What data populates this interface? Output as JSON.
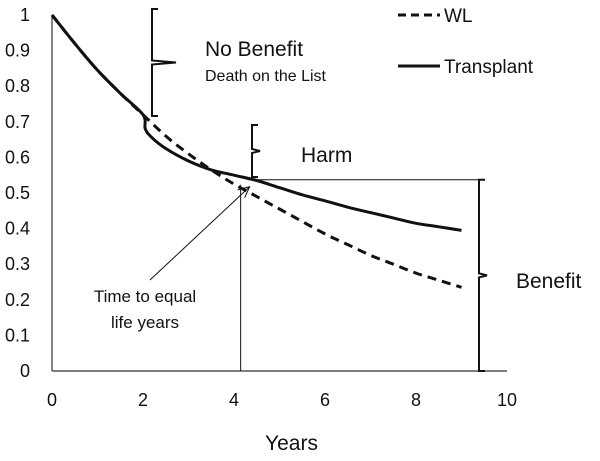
{
  "chart_data": {
    "type": "line",
    "title": "",
    "xlabel": "Years",
    "ylabel": "",
    "xlim": [
      0,
      10
    ],
    "ylim": [
      0,
      1
    ],
    "xticks": [
      0,
      2,
      4,
      6,
      8,
      10
    ],
    "yticks": [
      0,
      0.1,
      0.2,
      0.3,
      0.4,
      0.5,
      0.6,
      0.7,
      0.8,
      0.9,
      1
    ],
    "xtick_labels": [
      "0",
      "2",
      "4",
      "6",
      "8",
      "10"
    ],
    "ytick_labels": [
      "0",
      "0.1",
      "0.2",
      "0.3",
      "0.4",
      "0.5",
      "0.6",
      "0.7",
      "0.8",
      "0.9",
      "1"
    ],
    "grid": false,
    "legend_position": "top-right",
    "series": [
      {
        "name": "WL",
        "style": "dashed",
        "color": "#111111",
        "x": [
          0,
          0.5,
          1,
          1.5,
          2,
          2.5,
          3,
          3.5,
          4,
          4.5,
          5,
          5.5,
          6,
          6.5,
          7,
          7.5,
          8,
          8.5,
          9
        ],
        "y": [
          1.0,
          0.92,
          0.845,
          0.78,
          0.72,
          0.66,
          0.61,
          0.565,
          0.525,
          0.49,
          0.455,
          0.42,
          0.385,
          0.355,
          0.325,
          0.3,
          0.275,
          0.255,
          0.235
        ]
      },
      {
        "name": "Transplant",
        "style": "solid",
        "color": "#111111",
        "x": [
          0,
          0.5,
          1,
          1.5,
          2,
          2.05,
          2.2,
          2.5,
          3,
          3.5,
          4,
          4.5,
          5,
          5.5,
          6,
          6.5,
          7,
          7.5,
          8,
          8.5,
          9
        ],
        "y": [
          1.0,
          0.92,
          0.845,
          0.78,
          0.72,
          0.68,
          0.655,
          0.625,
          0.59,
          0.565,
          0.55,
          0.535,
          0.515,
          0.495,
          0.478,
          0.46,
          0.445,
          0.43,
          0.415,
          0.405,
          0.395
        ]
      }
    ],
    "annotations": [
      {
        "id": "no-benefit",
        "title": "No Benefit",
        "subtitle": "Death on the List"
      },
      {
        "id": "harm",
        "text": "Harm"
      },
      {
        "id": "benefit",
        "text": "Benefit"
      },
      {
        "id": "equal-life-years",
        "line1": "Time to equal",
        "line2": "life years",
        "at_x": 4.3,
        "at_y": 0.54
      }
    ]
  }
}
